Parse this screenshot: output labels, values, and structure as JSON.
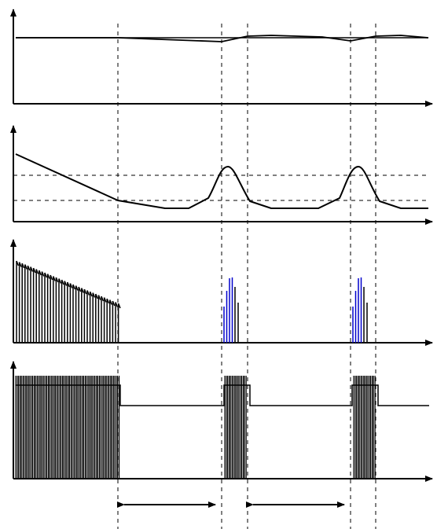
{
  "diagram": {
    "panels": [
      {
        "id": "panel-1",
        "label": ""
      },
      {
        "id": "panel-2",
        "label": ""
      },
      {
        "id": "panel-3",
        "label": ""
      },
      {
        "id": "panel-4",
        "label": ""
      }
    ],
    "intervals": [
      {
        "id": "interval-1",
        "label": ""
      },
      {
        "id": "interval-2",
        "label": ""
      }
    ]
  },
  "colors": {
    "line": "#000000",
    "highlight_pulses": "#0000cc",
    "background": "#ffffff"
  }
}
